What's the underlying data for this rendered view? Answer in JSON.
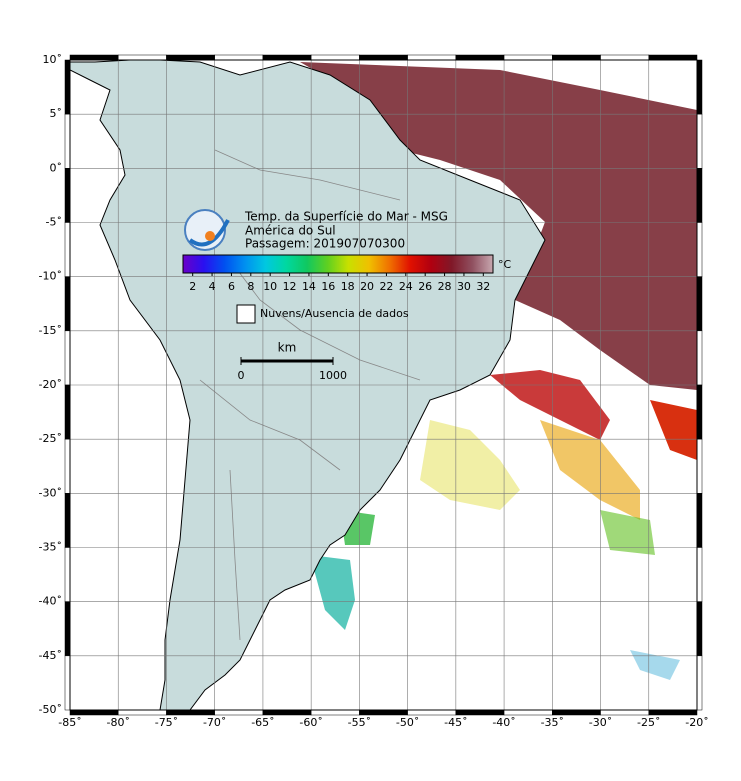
{
  "map": {
    "title": [
      "Temp. da Superfície do Mar - MSG",
      "América do Sul",
      "Passagem: 201907070300"
    ],
    "xlim": [
      -85,
      -20
    ],
    "ylim": [
      -50,
      10
    ],
    "xticks": [
      {
        "value": -85,
        "label": "-85˚"
      },
      {
        "value": -80,
        "label": "-80˚"
      },
      {
        "value": -75,
        "label": "-75˚"
      },
      {
        "value": -70,
        "label": "-70˚"
      },
      {
        "value": -65,
        "label": "-65˚"
      },
      {
        "value": -60,
        "label": "-60˚"
      },
      {
        "value": -55,
        "label": "-55˚"
      },
      {
        "value": -50,
        "label": "-50˚"
      },
      {
        "value": -45,
        "label": "-45˚"
      },
      {
        "value": -40,
        "label": "-40˚"
      },
      {
        "value": -35,
        "label": "-35˚"
      },
      {
        "value": -30,
        "label": "-30˚"
      },
      {
        "value": -25,
        "label": "-25˚"
      },
      {
        "value": -20,
        "label": "-20˚"
      }
    ],
    "yticks": [
      {
        "value": 10,
        "label": "10˚"
      },
      {
        "value": 5,
        "label": "5˚"
      },
      {
        "value": 0,
        "label": "0˚"
      },
      {
        "value": -5,
        "label": "-5˚"
      },
      {
        "value": -10,
        "label": "-10˚"
      },
      {
        "value": -15,
        "label": "-15˚"
      },
      {
        "value": -20,
        "label": "-20˚"
      },
      {
        "value": -25,
        "label": "-25˚"
      },
      {
        "value": -30,
        "label": "-30˚"
      },
      {
        "value": -35,
        "label": "-35˚"
      },
      {
        "value": -40,
        "label": "-40˚"
      },
      {
        "value": -45,
        "label": "-45˚"
      },
      {
        "value": -50,
        "label": "-50˚"
      }
    ],
    "grid": true,
    "colorbar": {
      "unit": "°C",
      "lim": [
        1,
        33
      ],
      "ticks": [
        2,
        4,
        6,
        8,
        10,
        12,
        14,
        16,
        18,
        20,
        22,
        24,
        26,
        28,
        30,
        32
      ],
      "colors": [
        "#6a00c8",
        "#2a10f0",
        "#0050f0",
        "#0090f0",
        "#00c8e0",
        "#00d8a0",
        "#10c860",
        "#60d020",
        "#c8e000",
        "#f0c000",
        "#f07000",
        "#e01000",
        "#b00010",
        "#801828",
        "#905060",
        "#c8a8b0"
      ]
    },
    "legend": "Nuvens/Ausencia de dados",
    "scale": {
      "unit": "km",
      "ticks": [
        0,
        1000
      ]
    }
  }
}
